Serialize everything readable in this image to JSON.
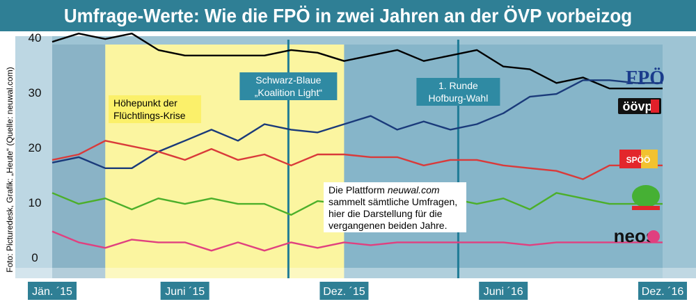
{
  "title": "Umfrage-Werte: Wie die FPÖ in zwei Jahren an der ÖVP vorbeizog",
  "credit": "Foto: Picturedesk, Grafik: „Heute“ (Quelle: neuwal.com)",
  "colors": {
    "title_bg": "#2f7f95",
    "plot_bg": "#9ec4d4",
    "plot_bg_light": "#bdd7e3",
    "highlight_yellow": "#fbf5a0",
    "marker_line": "#1f7b96",
    "fpo": "#000000",
    "ovp": "#1a3a7a",
    "spo": "#d93a3a",
    "gruene": "#4caf2a",
    "neos": "#e0407f"
  },
  "annotations": {
    "refugee_crisis": [
      "Höhepunkt der",
      "Flüchtlings-Krise"
    ],
    "coalition": [
      "Schwarz-Blaue",
      "„Koalition Light“"
    ],
    "election": [
      "1. Runde",
      "Hofburg-Wahl"
    ],
    "source_note_line1_prefix": "Die Plattform ",
    "source_note_line1_em": "neuwal.com",
    "source_note_lines": [
      "sammelt sämtliche Umfragen,",
      "hier die Darstellung für die",
      "vergangenen beiden Jahre."
    ]
  },
  "party_logos": {
    "fpo": "FPÖ",
    "ovp": "öövp",
    "spo": "SPÖÖ",
    "neos": "neos"
  },
  "chart_data": {
    "type": "line",
    "x_labels": [
      "Jän. ´15",
      "Juni ´15",
      "Dez. ´15",
      "Juni ´16",
      "Dez. ´16"
    ],
    "x_label_months": [
      0,
      5,
      11,
      17,
      23
    ],
    "y_ticks": [
      0,
      10,
      20,
      30,
      40
    ],
    "ylim": [
      -1,
      43
    ],
    "months": [
      0,
      1,
      2,
      3,
      4,
      5,
      6,
      7,
      8,
      9,
      10,
      11,
      12,
      13,
      14,
      15,
      16,
      17,
      18,
      19,
      20,
      21,
      22,
      23
    ],
    "series": [
      {
        "key": "fpo",
        "color": "#000000",
        "values": [
          40.5,
          42,
          41,
          42,
          39,
          38,
          38,
          38,
          38,
          39,
          38.5,
          37,
          38,
          39,
          37,
          38,
          39,
          36,
          35.5,
          33,
          34,
          32,
          32,
          32
        ]
      },
      {
        "key": "ovp",
        "color": "#1a3a7a",
        "values": [
          18.5,
          19.5,
          17.5,
          17.5,
          20.5,
          22.5,
          24.5,
          22.5,
          25.5,
          24.5,
          24,
          25.5,
          27,
          24.5,
          26,
          24.5,
          25.5,
          27.5,
          30.5,
          31,
          33.5,
          33.5,
          33,
          33
        ]
      },
      {
        "key": "spo",
        "color": "#d93a3a",
        "values": [
          19,
          20,
          22.5,
          21.5,
          20.5,
          19,
          21,
          19,
          20,
          18,
          20,
          20,
          19.5,
          19.5,
          18,
          19,
          19,
          18,
          17.5,
          17,
          15.5,
          18,
          18,
          18
        ]
      },
      {
        "key": "gruene",
        "color": "#4caf2a",
        "values": [
          13,
          11,
          12,
          10,
          12,
          11,
          12,
          11,
          11,
          9,
          11.5,
          11,
          11,
          10.5,
          10,
          12,
          11,
          12,
          10,
          13,
          12,
          11,
          11,
          11
        ]
      },
      {
        "key": "neos",
        "color": "#e0407f",
        "values": [
          6,
          4,
          3,
          4.5,
          4,
          4,
          2.5,
          4,
          2.5,
          4,
          3,
          4,
          3.5,
          4,
          4,
          4,
          4,
          4,
          3.5,
          4,
          4,
          4,
          4,
          4
        ]
      }
    ]
  }
}
